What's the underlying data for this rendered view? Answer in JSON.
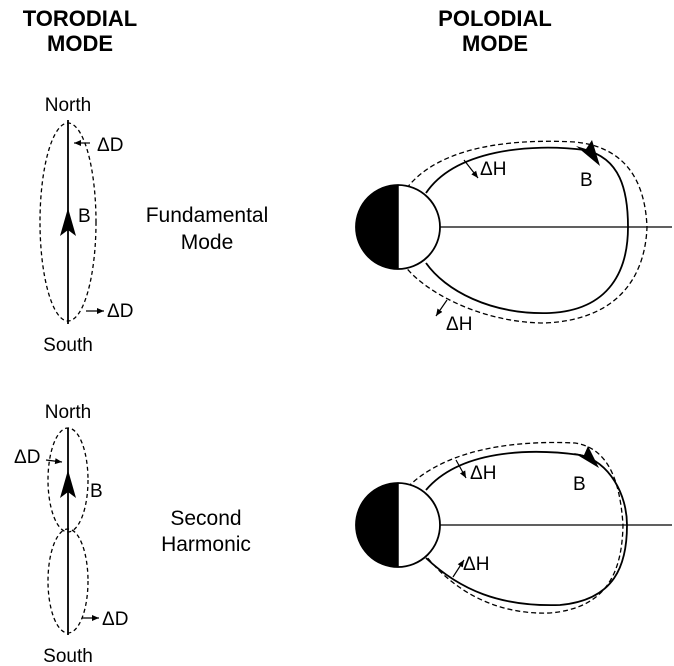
{
  "headers": {
    "toroidal": [
      "TORODIAL",
      "MODE"
    ],
    "poloidal": [
      "POLODIAL",
      "MODE"
    ]
  },
  "rows": {
    "fundamental": {
      "mode": [
        "Fundamental",
        "Mode"
      ],
      "north": "North",
      "south": "South",
      "b": "B",
      "delta_d": "ΔD",
      "delta_h": "ΔH"
    },
    "second": {
      "mode": [
        "Second",
        "Harmonic"
      ],
      "north": "North",
      "south": "South",
      "b": "B",
      "delta_d": "ΔD",
      "delta_h": "ΔH"
    }
  }
}
